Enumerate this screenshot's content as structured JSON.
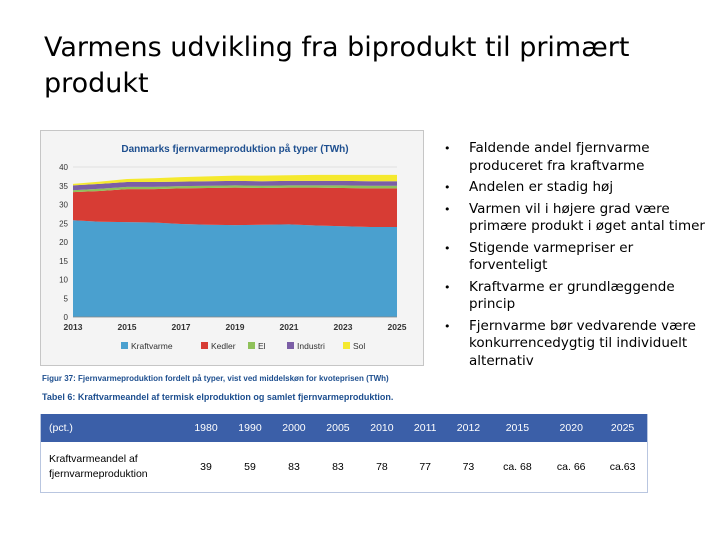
{
  "slide": {
    "title": "Varmens udvikling fra biprodukt til primært produkt"
  },
  "bullets": [
    "Faldende andel fjernvarme produceret fra kraftvarme",
    "Andelen er stadig høj",
    "Varmen vil i højere grad være primære produkt i øget antal timer",
    "Stigende varmepriser er forventeligt",
    "Kraftvarme er grundlæggende princip",
    "Fjernvarme bør vedvarende være konkurrencedygtig til individuelt alternativ"
  ],
  "figure_caption": "Figur 37: Fjernvarmeproduktion fordelt på typer, vist ved middelskøn for kvoteprisen (TWh)",
  "table_caption": "Tabel 6: Kraftvarmeandel af termisk elproduktion og samlet fjernvarmeproduktion.",
  "table": {
    "corner": "(pct.)",
    "columns": [
      "1980",
      "1990",
      "2000",
      "2005",
      "2010",
      "2011",
      "2012",
      "2015",
      "2020",
      "2025"
    ],
    "row_label": "Kraftvarmeandel af fjernvarmeproduktion",
    "values": [
      "39",
      "59",
      "83",
      "83",
      "78",
      "77",
      "73",
      "ca. 68",
      "ca. 66",
      "ca.63"
    ]
  },
  "colors": {
    "Kraftvarme": "#4aa0cf",
    "Kedler": "#d73c34",
    "El": "#8fc15a",
    "Industri": "#7b5ea6",
    "Sol": "#f5e92e",
    "title_blue": "#1e4f8f",
    "table_header": "#3b5fa8"
  },
  "chart_data": {
    "type": "area",
    "stacked": true,
    "title": "Danmarks fjernvarmeproduktion på typer (TWh)",
    "x": [
      2013,
      2014,
      2015,
      2016,
      2017,
      2018,
      2019,
      2020,
      2021,
      2022,
      2023,
      2024,
      2025
    ],
    "x_ticks": [
      "2013",
      "2015",
      "2017",
      "2019",
      "2021",
      "2023",
      "2025"
    ],
    "y_ticks": [
      "0",
      "5",
      "10",
      "15",
      "20",
      "25",
      "30",
      "35",
      "40"
    ],
    "ylim": [
      0,
      40
    ],
    "grid": true,
    "legend": "bottom",
    "series": [
      {
        "name": "Kraftvarme",
        "values": [
          25.8,
          25.4,
          25.3,
          25.2,
          24.8,
          24.6,
          24.5,
          24.6,
          24.7,
          24.4,
          24.2,
          24.0,
          24.0
        ]
      },
      {
        "name": "Kedler",
        "values": [
          7.5,
          8.2,
          8.8,
          8.9,
          9.5,
          9.8,
          10.0,
          9.8,
          9.8,
          10.1,
          10.2,
          10.3,
          10.3
        ]
      },
      {
        "name": "El",
        "values": [
          0.5,
          0.6,
          0.6,
          0.6,
          0.6,
          0.6,
          0.6,
          0.6,
          0.6,
          0.6,
          0.7,
          0.7,
          0.7
        ]
      },
      {
        "name": "Industri",
        "values": [
          1.3,
          1.3,
          1.3,
          1.3,
          1.2,
          1.2,
          1.2,
          1.2,
          1.2,
          1.2,
          1.2,
          1.2,
          1.2
        ]
      },
      {
        "name": "Sol",
        "values": [
          0.4,
          0.6,
          0.8,
          1.0,
          1.2,
          1.3,
          1.4,
          1.5,
          1.5,
          1.6,
          1.6,
          1.7,
          1.7
        ]
      }
    ]
  }
}
